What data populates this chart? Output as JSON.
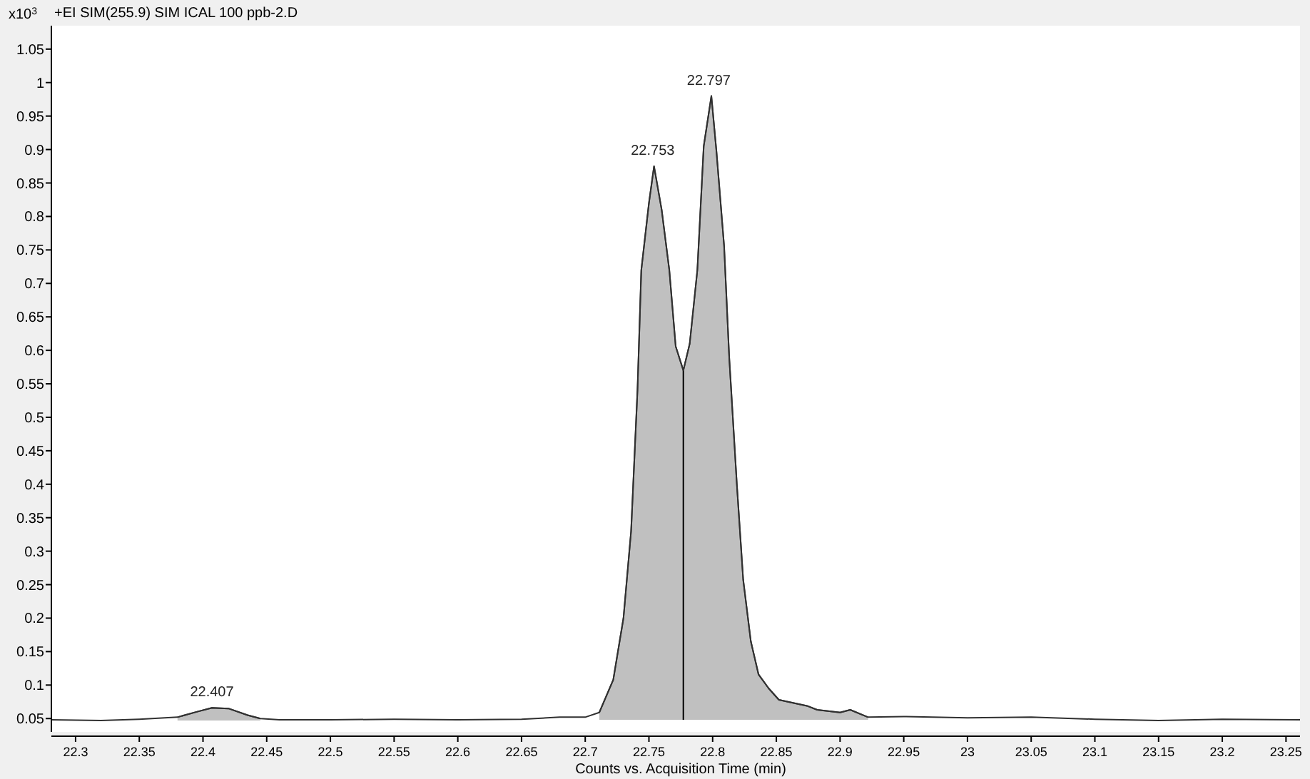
{
  "chart_data": {
    "type": "line",
    "title": "+EI SIM(255.9) SIM ICAL 100 ppb-2.D",
    "ylabel": "x10$^{3}$",
    "xlabel": "Counts vs. Acquisition Time (min)",
    "xlim": [
      22.281,
      23.261
    ],
    "ylim": [
      0.03,
      1.085
    ],
    "xticks": [
      22.3,
      22.35,
      22.4,
      22.45,
      22.5,
      22.55,
      22.6,
      22.65,
      22.7,
      22.75,
      22.8,
      22.85,
      22.9,
      22.95,
      23,
      23.05,
      23.1,
      23.15,
      23.2,
      23.25
    ],
    "yticks": [
      0.05,
      0.1,
      0.15,
      0.2,
      0.25,
      0.3,
      0.35,
      0.4,
      0.45,
      0.5,
      0.55,
      0.6,
      0.65,
      0.7,
      0.75,
      0.8,
      0.85,
      0.9,
      0.95,
      1,
      1.05
    ],
    "grid": false,
    "marker": "none",
    "line_style": "solid",
    "series": [
      {
        "color": "#404040",
        "x": [
          22.38,
          22.395,
          22.407,
          22.42,
          22.435,
          22.445
        ],
        "values": [
          0.052,
          0.06,
          0.066,
          0.065,
          0.055,
          0.05
        ],
        "upper": [
          0.052,
          0.06,
          0.066,
          0.065,
          0.055,
          0.05
        ],
        "lower": [
          0.047,
          0.047,
          0.047,
          0.047,
          0.047,
          0.047
        ]
      },
      {
        "color": "#404040",
        "x": [
          22.711,
          22.722,
          22.73,
          22.736,
          22.741,
          22.744,
          22.75,
          22.754,
          22.76,
          22.766,
          22.771,
          22.777,
          22.782,
          22.788,
          22.793,
          22.799,
          22.803,
          22.809,
          22.813,
          22.819,
          22.824,
          22.83,
          22.836,
          22.844,
          22.852,
          22.874,
          22.882,
          22.9,
          22.908,
          22.922
        ],
        "values": [
          0.059,
          0.108,
          0.2,
          0.33,
          0.54,
          0.72,
          0.82,
          0.875,
          0.81,
          0.72,
          0.606,
          0.57,
          0.61,
          0.72,
          0.905,
          0.98,
          0.897,
          0.756,
          0.59,
          0.4,
          0.257,
          0.165,
          0.116,
          0.095,
          0.078,
          0.069,
          0.063,
          0.059,
          0.063,
          0.052
        ],
        "upper": [
          0.059,
          0.108,
          0.2,
          0.33,
          0.54,
          0.72,
          0.82,
          0.875,
          0.81,
          0.72,
          0.606,
          0.57,
          0.61,
          0.72,
          0.905,
          0.98,
          0.897,
          0.756,
          0.59,
          0.4,
          0.257,
          0.165,
          0.116,
          0.095,
          0.078,
          0.069,
          0.063,
          0.059,
          0.063,
          0.052
        ],
        "lower": [
          0.048,
          0.048,
          0.048,
          0.048,
          0.048,
          0.048,
          0.048,
          0.048,
          0.048,
          0.048,
          0.048,
          0.048,
          0.048,
          0.048,
          0.048,
          0.048,
          0.048,
          0.048,
          0.048,
          0.048,
          0.048,
          0.048,
          0.048,
          0.048,
          0.048,
          0.048,
          0.048,
          0.048,
          0.048,
          0.048
        ]
      },
      {
        "color": "#000000",
        "x": [
          22.777,
          22.777
        ],
        "values": [
          0.048,
          0.57
        ]
      },
      {
        "color": "#303030",
        "x": [
          22.281,
          22.32,
          22.35,
          22.38,
          22.395,
          22.407,
          22.42,
          22.435,
          22.445,
          22.46,
          22.5,
          22.55,
          22.6,
          22.65,
          22.68,
          22.7,
          22.711,
          22.722,
          22.73,
          22.736,
          22.741,
          22.744,
          22.75,
          22.754,
          22.76,
          22.766,
          22.771,
          22.777,
          22.782,
          22.788,
          22.793,
          22.799,
          22.803,
          22.809,
          22.813,
          22.819,
          22.824,
          22.83,
          22.836,
          22.844,
          22.852,
          22.874,
          22.882,
          22.9,
          22.908,
          22.922,
          22.95,
          23,
          23.05,
          23.1,
          23.15,
          23.2,
          23.261
        ],
        "values": [
          0.048,
          0.047,
          0.049,
          0.052,
          0.06,
          0.066,
          0.065,
          0.055,
          0.05,
          0.048,
          0.048,
          0.049,
          0.048,
          0.049,
          0.052,
          0.052,
          0.059,
          0.108,
          0.2,
          0.33,
          0.54,
          0.72,
          0.82,
          0.875,
          0.81,
          0.72,
          0.606,
          0.57,
          0.61,
          0.72,
          0.905,
          0.98,
          0.897,
          0.756,
          0.59,
          0.4,
          0.257,
          0.165,
          0.116,
          0.095,
          0.078,
          0.069,
          0.063,
          0.059,
          0.063,
          0.052,
          0.053,
          0.051,
          0.052,
          0.049,
          0.047,
          0.049,
          0.048
        ]
      }
    ],
    "annotations": [
      {
        "text": "22.407",
        "x": 22.407,
        "y": 0.066
      },
      {
        "text": "22.753",
        "x": 22.753,
        "y": 0.875
      },
      {
        "text": "22.797",
        "x": 22.797,
        "y": 0.98
      }
    ]
  }
}
